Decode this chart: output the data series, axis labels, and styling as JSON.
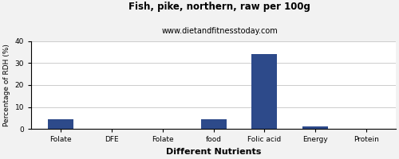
{
  "title": "Fish, pike, northern, raw per 100g",
  "subtitle": "www.dietandfitnesstoday.com",
  "xlabel": "Different Nutrients",
  "ylabel": "Percentage of RDH (%)",
  "categories": [
    "Folate",
    "DFE",
    "Folate",
    "food",
    "Folic acid",
    "Energy",
    "Protein"
  ],
  "values": [
    4.5,
    0,
    0,
    4.5,
    34,
    1,
    0
  ],
  "bar_color": "#2d4a8a",
  "ylim": [
    0,
    40
  ],
  "yticks": [
    0,
    10,
    20,
    30,
    40
  ],
  "background_color": "#f2f2f2",
  "plot_bg_color": "#ffffff",
  "title_fontsize": 8.5,
  "subtitle_fontsize": 7,
  "xlabel_fontsize": 8,
  "ylabel_fontsize": 6.5,
  "tick_fontsize": 6.5
}
